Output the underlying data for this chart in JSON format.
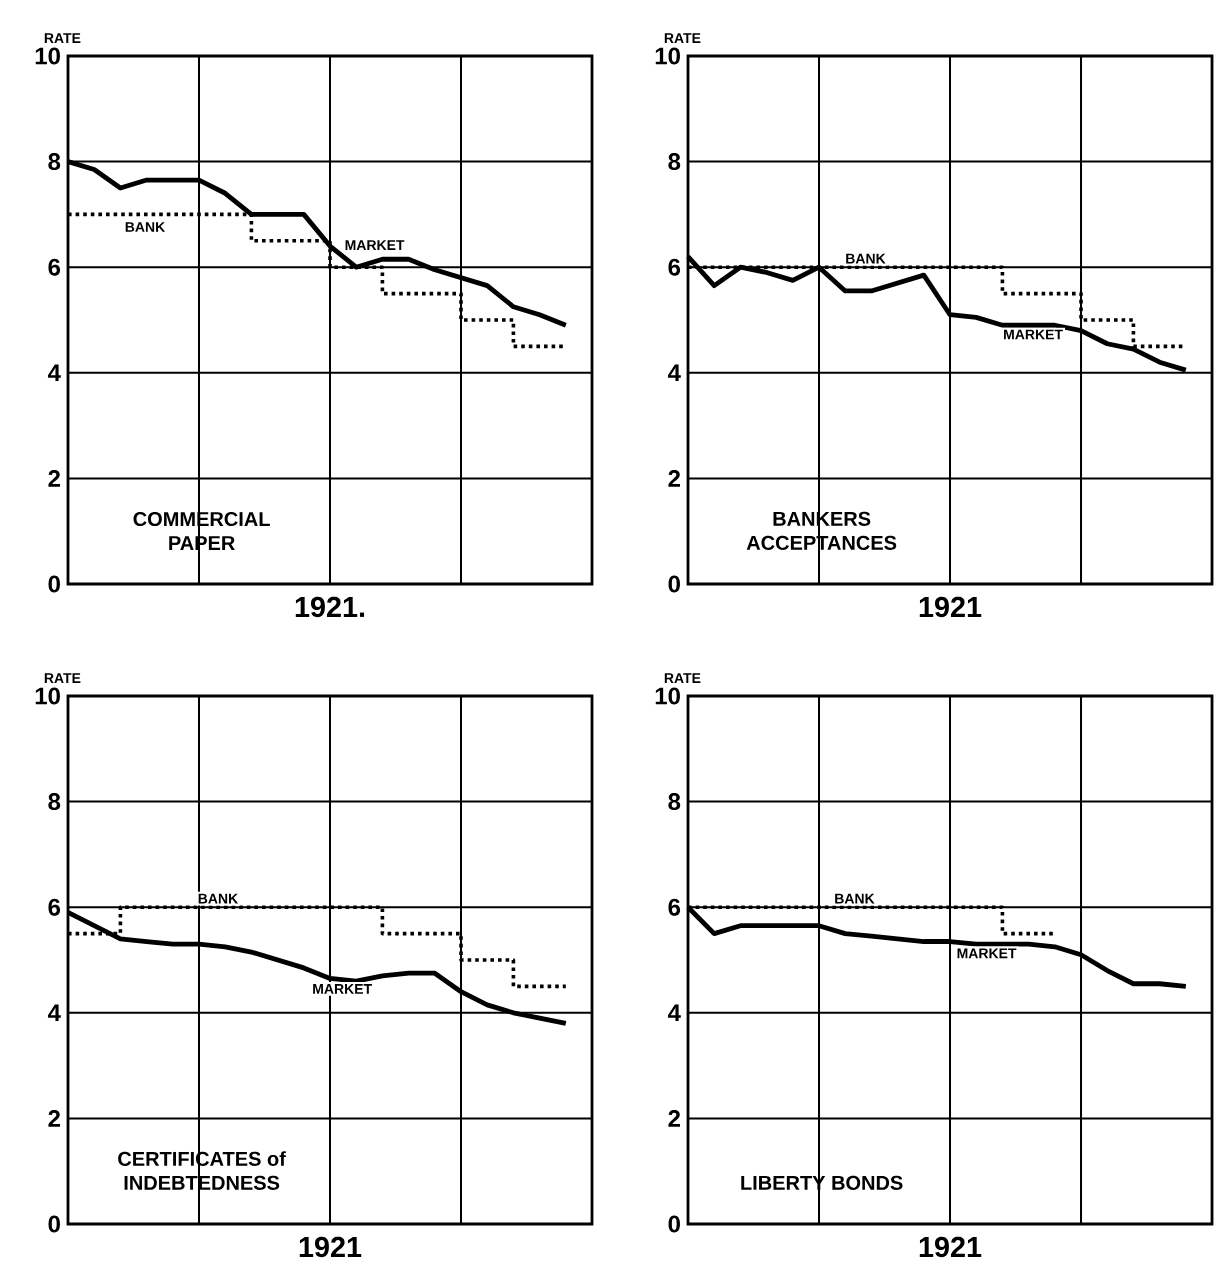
{
  "chart_data": [
    {
      "type": "line",
      "xlabel": "1921.",
      "ylabel": "RATE",
      "annotations": [
        "COMMERCIAL PAPER"
      ],
      "categories": [
        null,
        null,
        null,
        null,
        null,
        null,
        null,
        null,
        null,
        null,
        null,
        null,
        null,
        null,
        null,
        null,
        null,
        null,
        null,
        null,
        null
      ],
      "ylim": [
        0,
        10
      ],
      "yticks": [
        0,
        2,
        4,
        6,
        8,
        10
      ],
      "grid": true,
      "series": [
        {
          "name": "MARKET",
          "color": "#000000",
          "line_style": "solid",
          "values": [
            8.0,
            7.85,
            7.5,
            7.65,
            7.65,
            7.65,
            7.4,
            7.0,
            7.0,
            7.0,
            6.4,
            6.0,
            6.15,
            6.15,
            5.95,
            5.8,
            5.65,
            5.25,
            5.1,
            4.9,
            null
          ]
        },
        {
          "name": "BANK",
          "type": "step",
          "color": "#000000",
          "line_style": "dotted",
          "values": [
            7.0,
            7.0,
            7.0,
            7.0,
            7.0,
            7.0,
            7.0,
            6.5,
            6.5,
            6.5,
            6.0,
            6.0,
            5.5,
            5.5,
            5.5,
            5.0,
            5.0,
            4.5,
            4.5,
            4.5,
            null
          ]
        }
      ]
    },
    {
      "type": "line",
      "xlabel": "1921",
      "ylabel": "RATE",
      "annotations": [
        "BANKERS ACCEPTANCES"
      ],
      "categories": [
        null,
        null,
        null,
        null,
        null,
        null,
        null,
        null,
        null,
        null,
        null,
        null,
        null,
        null,
        null,
        null,
        null,
        null,
        null,
        null,
        null
      ],
      "ylim": [
        0,
        10
      ],
      "yticks": [
        0,
        2,
        4,
        6,
        8,
        10
      ],
      "grid": true,
      "series": [
        {
          "name": "MARKET",
          "color": "#000000",
          "line_style": "solid",
          "values": [
            6.2,
            5.65,
            6.0,
            5.9,
            5.75,
            6.0,
            5.55,
            5.55,
            5.7,
            5.85,
            5.1,
            5.05,
            4.9,
            4.9,
            4.9,
            4.8,
            4.55,
            4.45,
            4.2,
            4.05,
            null
          ]
        },
        {
          "name": "BANK",
          "type": "step",
          "color": "#000000",
          "line_style": "dotted",
          "values": [
            6.0,
            6.0,
            6.0,
            6.0,
            6.0,
            6.0,
            6.0,
            6.0,
            6.0,
            6.0,
            6.0,
            6.0,
            5.5,
            5.5,
            5.5,
            5.0,
            5.0,
            4.5,
            4.5,
            4.5,
            null
          ]
        }
      ]
    },
    {
      "type": "line",
      "xlabel": "1921",
      "ylabel": "RATE",
      "annotations": [
        "CERTIFICATES of INDEBTEDNESS"
      ],
      "categories": [
        null,
        null,
        null,
        null,
        null,
        null,
        null,
        null,
        null,
        null,
        null,
        null,
        null,
        null,
        null,
        null,
        null,
        null,
        null,
        null,
        null
      ],
      "ylim": [
        0,
        10
      ],
      "yticks": [
        0,
        2,
        4,
        6,
        8,
        10
      ],
      "grid": true,
      "series": [
        {
          "name": "MARKET",
          "color": "#000000",
          "line_style": "solid",
          "values": [
            5.9,
            5.65,
            5.4,
            5.35,
            5.3,
            5.3,
            5.25,
            5.15,
            5.0,
            4.85,
            4.65,
            4.6,
            4.7,
            4.75,
            4.75,
            4.4,
            4.15,
            4.0,
            3.9,
            3.8,
            null
          ]
        },
        {
          "name": "BANK",
          "type": "step",
          "color": "#000000",
          "line_style": "dotted",
          "values": [
            5.5,
            5.5,
            6.0,
            6.0,
            6.0,
            6.0,
            6.0,
            6.0,
            6.0,
            6.0,
            6.0,
            6.0,
            5.5,
            5.5,
            5.5,
            5.0,
            5.0,
            4.5,
            4.5,
            4.5,
            null
          ]
        }
      ]
    },
    {
      "type": "line",
      "xlabel": "1921",
      "ylabel": "RATE",
      "annotations": [
        "LIBERTY BONDS"
      ],
      "categories": [
        null,
        null,
        null,
        null,
        null,
        null,
        null,
        null,
        null,
        null,
        null,
        null,
        null,
        null,
        null,
        null,
        null,
        null,
        null,
        null,
        null
      ],
      "ylim": [
        0,
        10
      ],
      "yticks": [
        0,
        2,
        4,
        6,
        8,
        10
      ],
      "grid": true,
      "series": [
        {
          "name": "MARKET",
          "color": "#000000",
          "line_style": "solid",
          "values": [
            6.0,
            5.5,
            5.65,
            5.65,
            5.65,
            5.65,
            5.5,
            5.45,
            5.4,
            5.35,
            5.35,
            5.3,
            5.3,
            5.3,
            5.25,
            5.1,
            4.8,
            4.55,
            4.55,
            4.5,
            null
          ]
        },
        {
          "name": "BANK",
          "type": "step",
          "color": "#000000",
          "line_style": "dotted",
          "values": [
            6.0,
            6.0,
            6.0,
            6.0,
            6.0,
            6.0,
            6.0,
            6.0,
            6.0,
            6.0,
            6.0,
            6.0,
            5.5,
            5.5,
            5.5,
            null,
            null,
            null,
            null,
            null,
            null
          ]
        }
      ]
    }
  ]
}
